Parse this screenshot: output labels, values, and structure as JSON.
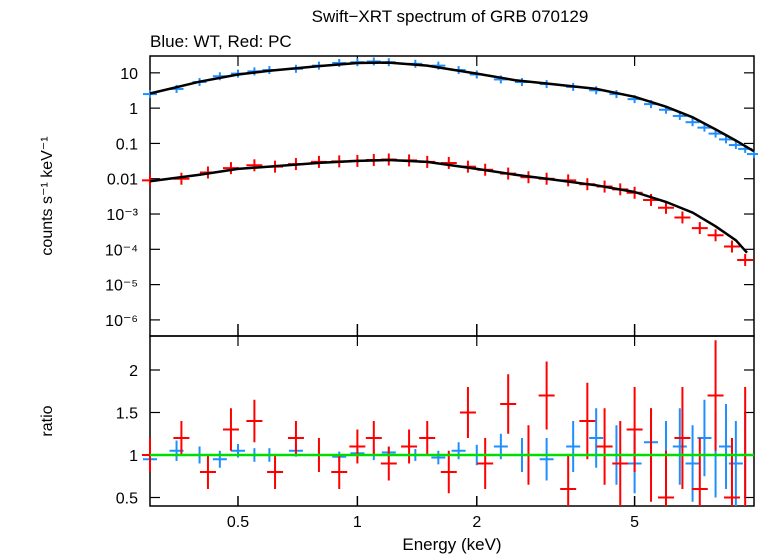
{
  "title": "Swift−XRT spectrum of GRB 070129",
  "subtitle": "Blue: WT, Red: PC",
  "colors": {
    "wt": "#1f8fff",
    "pc": "#ff0000",
    "model": "#000000",
    "ratio_line": "#00dd00",
    "frame": "#000000"
  },
  "chart_data": [
    {
      "type": "scatter",
      "panel": "spectrum",
      "xscale": "log",
      "yscale": "log",
      "xlim": [
        0.3,
        10
      ],
      "ylim": [
        3.5e-07,
        30
      ],
      "ylabel": "counts s⁻¹ keV⁻¹",
      "yticks": [
        {
          "value": 10,
          "label": "10"
        },
        {
          "value": 1,
          "label": "1"
        },
        {
          "value": 0.1,
          "label": "0.1"
        },
        {
          "value": 0.01,
          "label": "0.01"
        },
        {
          "value": 0.001,
          "label": "10⁻³"
        },
        {
          "value": 0.0001,
          "label": "10⁻⁴"
        },
        {
          "value": 1e-05,
          "label": "10⁻⁵"
        },
        {
          "value": 1e-06,
          "label": "10⁻⁶"
        }
      ],
      "series": [
        {
          "key": "WT",
          "x": [
            0.3,
            0.35,
            0.4,
            0.45,
            0.5,
            0.55,
            0.6,
            0.7,
            0.8,
            0.9,
            1.0,
            1.1,
            1.2,
            1.4,
            1.6,
            1.8,
            2.0,
            2.3,
            2.6,
            3.0,
            3.5,
            4.0,
            4.5,
            5.0,
            5.5,
            6.0,
            6.5,
            7.0,
            7.5,
            8.0,
            8.5,
            9.0,
            9.5,
            10.0
          ],
          "y": [
            2.5,
            3.5,
            5.5,
            8.0,
            9.5,
            11.0,
            12.0,
            13.0,
            16.0,
            19.0,
            20.0,
            21.0,
            20.0,
            18.0,
            16.0,
            12.0,
            9.0,
            6.5,
            5.5,
            4.8,
            4.0,
            3.2,
            2.5,
            1.8,
            1.3,
            0.9,
            0.6,
            0.4,
            0.28,
            0.19,
            0.13,
            0.09,
            0.07,
            0.05
          ]
        },
        {
          "key": "PC",
          "x": [
            0.3,
            0.36,
            0.42,
            0.48,
            0.55,
            0.62,
            0.7,
            0.8,
            0.9,
            1.0,
            1.1,
            1.2,
            1.35,
            1.5,
            1.7,
            1.9,
            2.1,
            2.4,
            2.7,
            3.0,
            3.4,
            3.8,
            4.2,
            4.6,
            5.0,
            5.5,
            6.0,
            6.6,
            7.3,
            8.0,
            8.8,
            9.5
          ],
          "y": [
            0.009,
            0.01,
            0.015,
            0.02,
            0.024,
            0.022,
            0.026,
            0.03,
            0.031,
            0.032,
            0.034,
            0.035,
            0.033,
            0.03,
            0.028,
            0.022,
            0.018,
            0.014,
            0.011,
            0.01,
            0.009,
            0.007,
            0.006,
            0.005,
            0.004,
            0.0025,
            0.0015,
            0.0008,
            0.0004,
            0.00025,
            0.00012,
            5e-05
          ]
        }
      ],
      "model": [
        {
          "key": "WT",
          "x": [
            0.3,
            0.4,
            0.5,
            0.6,
            0.8,
            1.0,
            1.2,
            1.5,
            2.0,
            2.5,
            3.0,
            4.0,
            5.0,
            6.0,
            7.0,
            8.0,
            9.0,
            10.0
          ],
          "y": [
            2.6,
            5.6,
            9.0,
            11.5,
            15.5,
            19.0,
            19.5,
            16.0,
            9.5,
            6.2,
            5.0,
            3.5,
            2.1,
            1.1,
            0.55,
            0.25,
            0.12,
            0.06
          ]
        },
        {
          "key": "PC",
          "x": [
            0.3,
            0.4,
            0.5,
            0.6,
            0.8,
            1.0,
            1.2,
            1.5,
            2.0,
            2.5,
            3.0,
            4.0,
            5.0,
            6.0,
            7.0,
            8.0,
            9.0,
            9.6
          ],
          "y": [
            0.0085,
            0.013,
            0.019,
            0.022,
            0.028,
            0.032,
            0.034,
            0.03,
            0.019,
            0.013,
            0.01,
            0.0065,
            0.0042,
            0.0022,
            0.0011,
            0.00045,
            0.00018,
            8e-05
          ]
        }
      ]
    },
    {
      "type": "scatter",
      "panel": "ratio",
      "xscale": "log",
      "xlim": [
        0.3,
        10
      ],
      "ylim": [
        0.4,
        2.4
      ],
      "xlabel": "Energy (keV)",
      "ylabel": "ratio",
      "xticks": [
        {
          "value": 0.5,
          "label": "0.5"
        },
        {
          "value": 1,
          "label": "1"
        },
        {
          "value": 2,
          "label": "2"
        },
        {
          "value": 5,
          "label": "5"
        }
      ],
      "yticks": [
        {
          "value": 0.5,
          "label": "0.5"
        },
        {
          "value": 1,
          "label": "1"
        },
        {
          "value": 1.5,
          "label": "1.5"
        },
        {
          "value": 2,
          "label": "2"
        }
      ],
      "reference_line": 1,
      "series": [
        {
          "key": "WT",
          "x": [
            0.3,
            0.35,
            0.4,
            0.45,
            0.5,
            0.55,
            0.6,
            0.7,
            0.8,
            0.9,
            1.0,
            1.1,
            1.2,
            1.4,
            1.6,
            1.8,
            2.0,
            2.3,
            2.6,
            3.0,
            3.5,
            4.0,
            4.5,
            5.0,
            5.5,
            6.0,
            6.5,
            7.0,
            7.5,
            8.0,
            8.5,
            9.0,
            9.5
          ],
          "y": [
            0.95,
            1.05,
            1.0,
            0.95,
            1.05,
            1.0,
            1.0,
            1.05,
            1.0,
            0.98,
            1.02,
            1.0,
            1.03,
            1.0,
            0.97,
            1.05,
            1.0,
            1.1,
            1.0,
            0.95,
            1.1,
            1.2,
            1.0,
            0.9,
            1.15,
            1.0,
            1.1,
            0.9,
            1.2,
            1.0,
            1.1,
            0.9,
            1.0
          ],
          "yerr": [
            0.12,
            0.12,
            0.1,
            0.1,
            0.08,
            0.08,
            0.08,
            0.07,
            0.07,
            0.06,
            0.06,
            0.06,
            0.06,
            0.07,
            0.08,
            0.1,
            0.12,
            0.15,
            0.2,
            0.25,
            0.3,
            0.35,
            0.35,
            0.35,
            0.4,
            0.4,
            0.45,
            0.45,
            0.45,
            0.5,
            0.5,
            0.5,
            0.5
          ]
        },
        {
          "key": "PC",
          "x": [
            0.3,
            0.36,
            0.42,
            0.48,
            0.55,
            0.62,
            0.7,
            0.8,
            0.9,
            1.0,
            1.1,
            1.2,
            1.35,
            1.5,
            1.7,
            1.9,
            2.1,
            2.4,
            2.7,
            3.0,
            3.4,
            3.8,
            4.2,
            4.6,
            5.0,
            5.5,
            6.0,
            6.6,
            7.3,
            8.0,
            8.8,
            9.5
          ],
          "y": [
            1.0,
            1.2,
            0.8,
            1.3,
            1.4,
            0.8,
            1.2,
            1.0,
            0.8,
            1.1,
            1.2,
            0.9,
            1.1,
            1.2,
            0.8,
            1.5,
            0.9,
            1.6,
            1.0,
            1.7,
            0.6,
            1.4,
            1.1,
            0.9,
            1.3,
            1.0,
            0.5,
            1.2,
            0.6,
            1.7,
            0.5,
            1.0
          ],
          "yerr": [
            0.2,
            0.2,
            0.2,
            0.25,
            0.25,
            0.2,
            0.2,
            0.2,
            0.2,
            0.2,
            0.2,
            0.2,
            0.2,
            0.2,
            0.25,
            0.3,
            0.3,
            0.35,
            0.35,
            0.4,
            0.4,
            0.45,
            0.45,
            0.5,
            0.5,
            0.55,
            0.55,
            0.6,
            0.6,
            0.65,
            0.7,
            0.8
          ]
        }
      ]
    }
  ]
}
